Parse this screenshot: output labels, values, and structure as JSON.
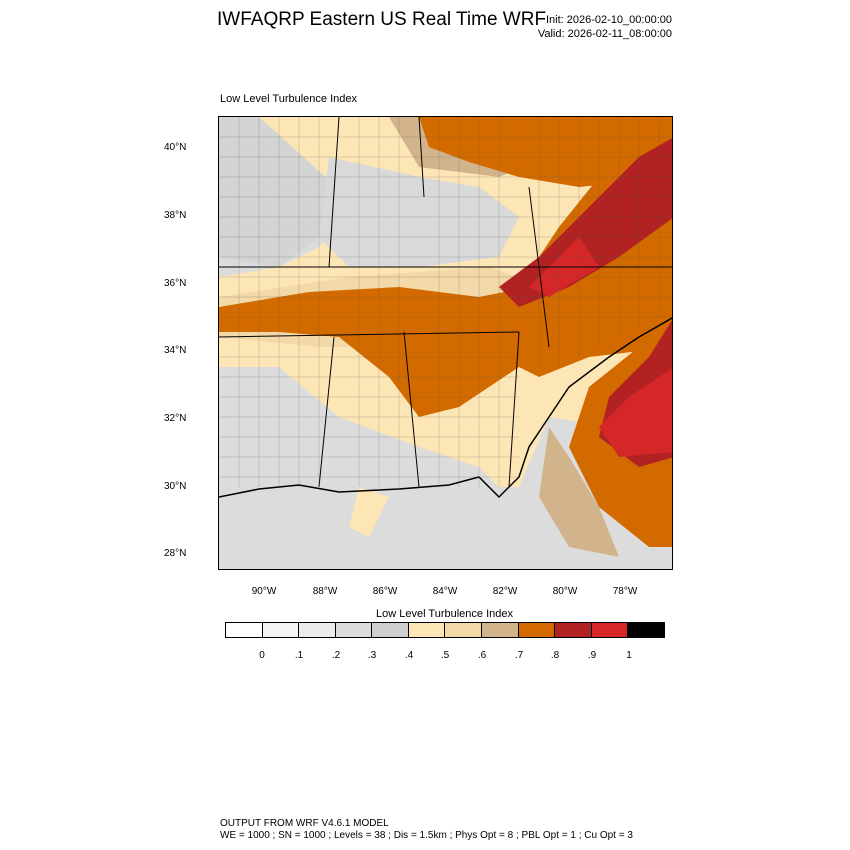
{
  "title": "IWFAQRP Eastern US Real Time WRF",
  "init": "Init: 2026-02-10_00:00:00",
  "valid": "Valid: 2026-02-11_08:00:00",
  "panel_label": "Low Level Turbulence Index",
  "lat_labels": [
    "40°N",
    "38°N",
    "36°N",
    "34°N",
    "32°N",
    "30°N",
    "28°N"
  ],
  "lon_labels": [
    "90°W",
    "88°W",
    "86°W",
    "84°W",
    "82°W",
    "80°W",
    "78°W"
  ],
  "colorbar": {
    "title": "Low Level Turbulence Index",
    "tick_labels": [
      "0",
      ".1",
      ".2",
      ".3",
      ".4",
      ".5",
      ".6",
      ".7",
      ".8",
      ".9",
      "1"
    ],
    "colors": [
      "#ffffff",
      "#f4f4f4",
      "#ebebeb",
      "#dcdcdc",
      "#cfcfcf",
      "#fde6b5",
      "#f3d8a8",
      "#d2b48c",
      "#d26a00",
      "#b22222",
      "#d62728",
      "#000000"
    ]
  },
  "footer": {
    "line1": "OUTPUT FROM WRF V4.6.1 MODEL",
    "line2": "WE = 1000 ; SN = 1000 ; Levels = 38 ; Dis = 1.5km ; Phys Opt = 8 ; PBL Opt = 1 ; Cu Opt = 3"
  },
  "map": {
    "ocean_color": "#dcdcdc",
    "land_low": "#fde6b5",
    "land_mid": "#f3d8a8",
    "land_tan": "#d2b48c",
    "orange": "#d26a00",
    "dark_red": "#b22222",
    "red": "#d62728"
  }
}
